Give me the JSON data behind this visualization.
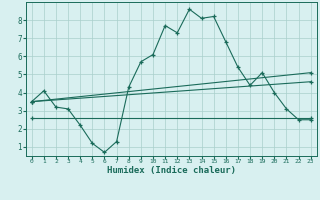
{
  "xlabel": "Humidex (Indice chaleur)",
  "background_color": "#d8f0f0",
  "line_color": "#1a6b5a",
  "grid_color": "#aacfcc",
  "xlim": [
    -0.5,
    23.5
  ],
  "ylim": [
    0.5,
    9.0
  ],
  "yticks": [
    1,
    2,
    3,
    4,
    5,
    6,
    7,
    8
  ],
  "xticks": [
    0,
    1,
    2,
    3,
    4,
    5,
    6,
    7,
    8,
    9,
    10,
    11,
    12,
    13,
    14,
    15,
    16,
    17,
    18,
    19,
    20,
    21,
    22,
    23
  ],
  "series1_x": [
    0,
    1,
    2,
    3,
    4,
    5,
    6,
    7,
    8,
    9,
    10,
    11,
    12,
    13,
    14,
    15,
    16,
    17,
    18,
    19,
    20,
    21,
    22,
    23
  ],
  "series1_y": [
    3.5,
    4.1,
    3.2,
    3.1,
    2.2,
    1.2,
    0.7,
    1.3,
    4.3,
    5.7,
    6.1,
    7.7,
    7.3,
    8.6,
    8.1,
    8.2,
    6.8,
    5.4,
    4.4,
    5.1,
    4.0,
    3.1,
    2.5,
    2.5
  ],
  "series2_x": [
    0,
    23
  ],
  "series2_y": [
    2.6,
    2.6
  ],
  "series3_x": [
    0,
    23
  ],
  "series3_y": [
    3.5,
    5.1
  ],
  "series4_x": [
    0,
    23
  ],
  "series4_y": [
    3.5,
    4.6
  ]
}
